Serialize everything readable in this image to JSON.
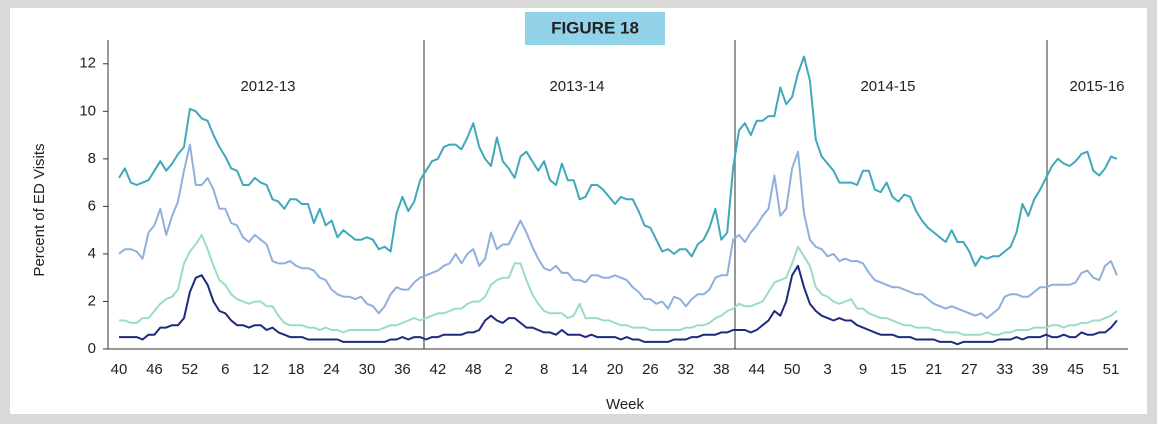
{
  "chart_data": {
    "type": "line",
    "title": "FIGURE 18",
    "y_label": "Percent of ED Visits",
    "x_label": "Week",
    "annotations": [
      "2012-13",
      "2013-14",
      "2014-15",
      "2015-16"
    ],
    "categories": [
      "40",
      null,
      null,
      null,
      null,
      null,
      "46",
      null,
      null,
      null,
      null,
      null,
      "52",
      null,
      null,
      null,
      null,
      null,
      "6",
      null,
      null,
      null,
      null,
      null,
      "12",
      null,
      null,
      null,
      null,
      null,
      "18",
      null,
      null,
      null,
      null,
      null,
      "24",
      null,
      null,
      null,
      null,
      null,
      "30",
      null,
      null,
      null,
      null,
      null,
      "36",
      null,
      null,
      null,
      null,
      null,
      "42",
      null,
      null,
      null,
      null,
      null,
      "48",
      null,
      null,
      null,
      null,
      null,
      "2",
      null,
      null,
      null,
      null,
      null,
      "8",
      null,
      null,
      null,
      null,
      null,
      "14",
      null,
      null,
      null,
      null,
      null,
      "20",
      null,
      null,
      null,
      null,
      null,
      "26",
      null,
      null,
      null,
      null,
      null,
      "32",
      null,
      null,
      null,
      null,
      null,
      "38",
      null,
      null,
      null,
      null,
      null,
      "44",
      null,
      null,
      null,
      null,
      null,
      "50",
      null,
      null,
      null,
      null,
      null,
      "3",
      null,
      null,
      null,
      null,
      null,
      "9",
      null,
      null,
      null,
      null,
      null,
      "15",
      null,
      null,
      null,
      null,
      null,
      "21",
      null,
      null,
      null,
      null,
      null,
      "27",
      null,
      null,
      null,
      null,
      null,
      "33",
      null,
      null,
      null,
      null,
      null,
      "39",
      null,
      null,
      null,
      null,
      null,
      "45",
      null,
      null,
      null,
      null,
      null,
      "51",
      null
    ],
    "ylim": [
      0,
      13
    ],
    "yticks": [
      0,
      2,
      4,
      6,
      8,
      10,
      12
    ],
    "series": [
      {
        "color": "#3fa9b9",
        "values": [
          7.2,
          7.6,
          7.0,
          6.9,
          7.0,
          7.1,
          7.5,
          7.9,
          7.5,
          7.8,
          8.2,
          8.5,
          10.1,
          10.0,
          9.7,
          9.6,
          9.0,
          8.5,
          8.1,
          7.6,
          7.5,
          6.9,
          6.9,
          7.2,
          7.0,
          6.9,
          6.3,
          6.2,
          5.9,
          6.3,
          6.3,
          6.1,
          6.1,
          5.3,
          5.9,
          5.2,
          5.4,
          4.7,
          5.0,
          4.8,
          4.6,
          4.6,
          4.7,
          4.6,
          4.2,
          4.3,
          4.1,
          5.7,
          6.4,
          5.8,
          6.2,
          7.1,
          7.5,
          7.9,
          8.0,
          8.5,
          8.6,
          8.6,
          8.4,
          8.9,
          9.5,
          8.5,
          8.0,
          7.7,
          8.9,
          7.9,
          7.6,
          7.2,
          8.1,
          8.3,
          7.9,
          7.5,
          7.9,
          7.1,
          6.9,
          7.8,
          7.1,
          7.1,
          6.3,
          6.4,
          6.9,
          6.9,
          6.7,
          6.4,
          6.1,
          6.4,
          6.3,
          6.3,
          5.8,
          5.2,
          5.1,
          4.6,
          4.1,
          4.2,
          4.0,
          4.2,
          4.2,
          3.9,
          4.4,
          4.6,
          5.1,
          5.9,
          4.6,
          4.9,
          7.6,
          9.2,
          9.5,
          9.0,
          9.6,
          9.6,
          9.8,
          9.8,
          11.0,
          10.3,
          10.6,
          11.6,
          12.3,
          11.3,
          8.8,
          8.1,
          7.8,
          7.5,
          7.0,
          7.0,
          7.0,
          6.9,
          7.5,
          7.5,
          6.7,
          6.6,
          7.0,
          6.4,
          6.2,
          6.5,
          6.4,
          5.8,
          5.4,
          5.1,
          4.9,
          4.7,
          4.5,
          5.0,
          4.5,
          4.5,
          4.1,
          3.5,
          3.9,
          3.8,
          3.9,
          3.9,
          4.1,
          4.3,
          4.9,
          6.1,
          5.6,
          6.3,
          6.7,
          7.2,
          7.7,
          8.0,
          7.8,
          7.7,
          7.9,
          8.2,
          8.3,
          7.5,
          7.3,
          7.6,
          8.1,
          8.0
        ]
      },
      {
        "color": "#8fb0dc",
        "values": [
          4.0,
          4.2,
          4.2,
          4.1,
          3.8,
          4.9,
          5.2,
          5.9,
          4.8,
          5.6,
          6.2,
          7.5,
          8.6,
          6.9,
          6.9,
          7.2,
          6.7,
          5.9,
          5.9,
          5.3,
          5.2,
          4.7,
          4.5,
          4.8,
          4.6,
          4.4,
          3.7,
          3.6,
          3.6,
          3.7,
          3.5,
          3.4,
          3.4,
          3.3,
          3.0,
          2.9,
          2.5,
          2.3,
          2.2,
          2.2,
          2.1,
          2.2,
          1.9,
          1.8,
          1.5,
          1.8,
          2.3,
          2.6,
          2.5,
          2.5,
          2.8,
          3.0,
          3.1,
          3.2,
          3.3,
          3.5,
          3.6,
          4.0,
          3.6,
          4.0,
          4.2,
          3.5,
          3.8,
          4.9,
          4.2,
          4.4,
          4.4,
          4.9,
          5.4,
          4.9,
          4.3,
          3.8,
          3.4,
          3.3,
          3.5,
          3.2,
          3.2,
          2.9,
          2.9,
          2.8,
          3.1,
          3.1,
          3.0,
          3.0,
          3.1,
          3.0,
          2.9,
          2.6,
          2.4,
          2.1,
          2.1,
          1.9,
          2.0,
          1.7,
          2.2,
          2.1,
          1.8,
          2.1,
          2.3,
          2.3,
          2.5,
          3.0,
          3.1,
          3.1,
          4.6,
          4.8,
          4.5,
          4.9,
          5.2,
          5.6,
          5.9,
          7.3,
          5.6,
          5.9,
          7.6,
          8.3,
          5.7,
          4.6,
          4.3,
          4.2,
          3.9,
          4.0,
          3.7,
          3.8,
          3.7,
          3.7,
          3.6,
          3.2,
          2.9,
          2.8,
          2.7,
          2.6,
          2.6,
          2.5,
          2.4,
          2.3,
          2.3,
          2.1,
          1.9,
          1.8,
          1.7,
          1.8,
          1.7,
          1.6,
          1.5,
          1.4,
          1.5,
          1.3,
          1.5,
          1.7,
          2.2,
          2.3,
          2.3,
          2.2,
          2.2,
          2.4,
          2.6,
          2.6,
          2.7,
          2.7,
          2.7,
          2.7,
          2.8,
          3.2,
          3.3,
          3.0,
          2.9,
          3.5,
          3.7,
          3.1
        ]
      },
      {
        "color": "#9bdcc6",
        "values": [
          1.2,
          1.2,
          1.1,
          1.1,
          1.3,
          1.3,
          1.6,
          1.9,
          2.1,
          2.2,
          2.5,
          3.6,
          4.1,
          4.4,
          4.8,
          4.2,
          3.5,
          2.9,
          2.7,
          2.3,
          2.1,
          2.0,
          1.9,
          2.0,
          2.0,
          1.8,
          1.8,
          1.4,
          1.1,
          1.0,
          1.0,
          1.0,
          0.9,
          0.9,
          0.8,
          0.9,
          0.8,
          0.8,
          0.7,
          0.8,
          0.8,
          0.8,
          0.8,
          0.8,
          0.8,
          0.9,
          1.0,
          1.0,
          1.1,
          1.2,
          1.3,
          1.2,
          1.3,
          1.4,
          1.5,
          1.5,
          1.6,
          1.7,
          1.7,
          1.9,
          2.0,
          2.0,
          2.2,
          2.7,
          2.9,
          3.0,
          3.0,
          3.6,
          3.6,
          2.9,
          2.3,
          1.9,
          1.6,
          1.5,
          1.5,
          1.5,
          1.3,
          1.4,
          1.9,
          1.3,
          1.3,
          1.3,
          1.2,
          1.2,
          1.1,
          1.0,
          1.0,
          0.9,
          0.9,
          0.9,
          0.8,
          0.8,
          0.8,
          0.8,
          0.8,
          0.8,
          0.9,
          0.9,
          1.0,
          1.0,
          1.1,
          1.3,
          1.4,
          1.6,
          1.7,
          1.9,
          1.8,
          1.8,
          1.9,
          2.0,
          2.4,
          2.8,
          2.9,
          3.0,
          3.6,
          4.3,
          3.9,
          3.5,
          2.6,
          2.3,
          2.2,
          2.0,
          1.9,
          2.0,
          2.1,
          1.7,
          1.7,
          1.5,
          1.4,
          1.3,
          1.3,
          1.2,
          1.1,
          1.0,
          1.0,
          0.9,
          0.9,
          0.9,
          0.8,
          0.8,
          0.7,
          0.7,
          0.7,
          0.6,
          0.6,
          0.6,
          0.6,
          0.7,
          0.6,
          0.6,
          0.7,
          0.7,
          0.8,
          0.8,
          0.8,
          0.9,
          0.9,
          0.9,
          1.0,
          1.0,
          0.9,
          1.0,
          1.0,
          1.1,
          1.1,
          1.2,
          1.2,
          1.3,
          1.4,
          1.6
        ]
      },
      {
        "color": "#1f2a7e",
        "values": [
          0.5,
          0.5,
          0.5,
          0.5,
          0.4,
          0.6,
          0.6,
          0.9,
          0.9,
          1.0,
          1.0,
          1.3,
          2.4,
          3.0,
          3.1,
          2.7,
          2.0,
          1.6,
          1.5,
          1.2,
          1.0,
          1.0,
          0.9,
          1.0,
          1.0,
          0.8,
          0.9,
          0.7,
          0.6,
          0.5,
          0.5,
          0.5,
          0.4,
          0.4,
          0.4,
          0.4,
          0.4,
          0.4,
          0.3,
          0.3,
          0.3,
          0.3,
          0.3,
          0.3,
          0.3,
          0.3,
          0.4,
          0.4,
          0.5,
          0.4,
          0.5,
          0.5,
          0.4,
          0.5,
          0.5,
          0.6,
          0.6,
          0.6,
          0.6,
          0.7,
          0.7,
          0.8,
          1.2,
          1.4,
          1.2,
          1.1,
          1.3,
          1.3,
          1.1,
          0.9,
          0.9,
          0.8,
          0.7,
          0.7,
          0.6,
          0.8,
          0.6,
          0.6,
          0.6,
          0.5,
          0.6,
          0.5,
          0.5,
          0.5,
          0.5,
          0.4,
          0.5,
          0.4,
          0.4,
          0.3,
          0.3,
          0.3,
          0.3,
          0.3,
          0.4,
          0.4,
          0.4,
          0.5,
          0.5,
          0.6,
          0.6,
          0.6,
          0.7,
          0.7,
          0.8,
          0.8,
          0.8,
          0.7,
          0.8,
          1.0,
          1.2,
          1.6,
          1.4,
          2.0,
          3.1,
          3.5,
          2.6,
          1.9,
          1.6,
          1.4,
          1.3,
          1.2,
          1.3,
          1.2,
          1.2,
          1.0,
          0.9,
          0.8,
          0.7,
          0.6,
          0.6,
          0.6,
          0.5,
          0.5,
          0.5,
          0.4,
          0.4,
          0.4,
          0.4,
          0.3,
          0.3,
          0.3,
          0.2,
          0.3,
          0.3,
          0.3,
          0.3,
          0.3,
          0.3,
          0.4,
          0.4,
          0.4,
          0.5,
          0.4,
          0.5,
          0.5,
          0.5,
          0.6,
          0.5,
          0.5,
          0.6,
          0.5,
          0.5,
          0.7,
          0.6,
          0.6,
          0.7,
          0.7,
          0.9,
          1.2
        ]
      }
    ]
  }
}
